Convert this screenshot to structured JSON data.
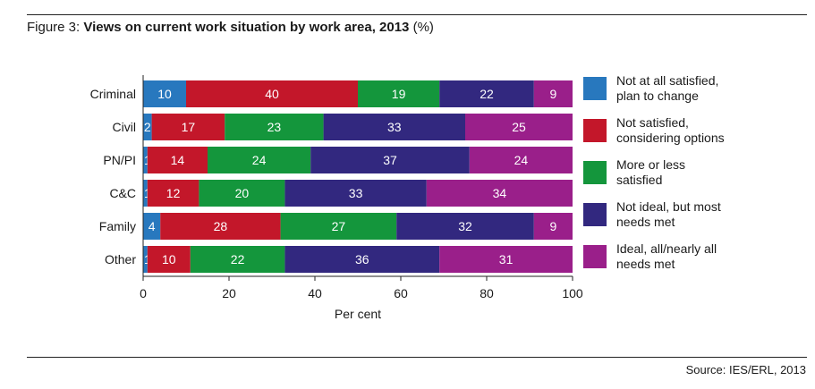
{
  "figure": {
    "prefix": "Figure 3: ",
    "title": "Views on current work situation by work area, 2013",
    "unit": " (%)"
  },
  "source": "Source: IES/ERL, 2013",
  "colors": {
    "not_at_all": "#2878be",
    "not_satisfied": "#c3172a",
    "more_or_less": "#14963c",
    "not_ideal": "#32287f",
    "ideal": "#9a1f8a",
    "rule": "#222222",
    "text": "#1a1a1a"
  },
  "chart_data": {
    "type": "bar",
    "orientation": "horizontal",
    "stacked": true,
    "title": "Views on current work situation by work area, 2013 (%)",
    "xlabel": "Per cent",
    "ylabel": "",
    "xlim": [
      0,
      100
    ],
    "xticks": [
      0,
      20,
      40,
      60,
      80,
      100
    ],
    "grid": false,
    "legend_position": "right",
    "categories": [
      "Criminal",
      "Civil",
      "PN/PI",
      "C&C",
      "Family",
      "Other"
    ],
    "series": [
      {
        "key": "not_at_all",
        "name": "Not at all satisfied, plan to change",
        "label_lines": [
          "Not at all satisfied,",
          "plan to change"
        ],
        "values": [
          10,
          2,
          1,
          1,
          4,
          1
        ]
      },
      {
        "key": "not_satisfied",
        "name": "Not satisfied, considering options",
        "label_lines": [
          "Not satisfied,",
          "considering options"
        ],
        "values": [
          40,
          17,
          14,
          12,
          28,
          10
        ]
      },
      {
        "key": "more_or_less",
        "name": "More or less satisfied",
        "label_lines": [
          "More or less",
          "satisfied"
        ],
        "values": [
          19,
          23,
          24,
          20,
          27,
          22
        ]
      },
      {
        "key": "not_ideal",
        "name": "Not ideal, but most needs met",
        "label_lines": [
          "Not ideal, but most",
          "needs met"
        ],
        "values": [
          22,
          33,
          37,
          33,
          32,
          36
        ]
      },
      {
        "key": "ideal",
        "name": "Ideal, all/nearly all needs met",
        "label_lines": [
          "Ideal, all/nearly all",
          "needs met"
        ],
        "values": [
          9,
          25,
          24,
          34,
          9,
          31
        ]
      }
    ]
  }
}
